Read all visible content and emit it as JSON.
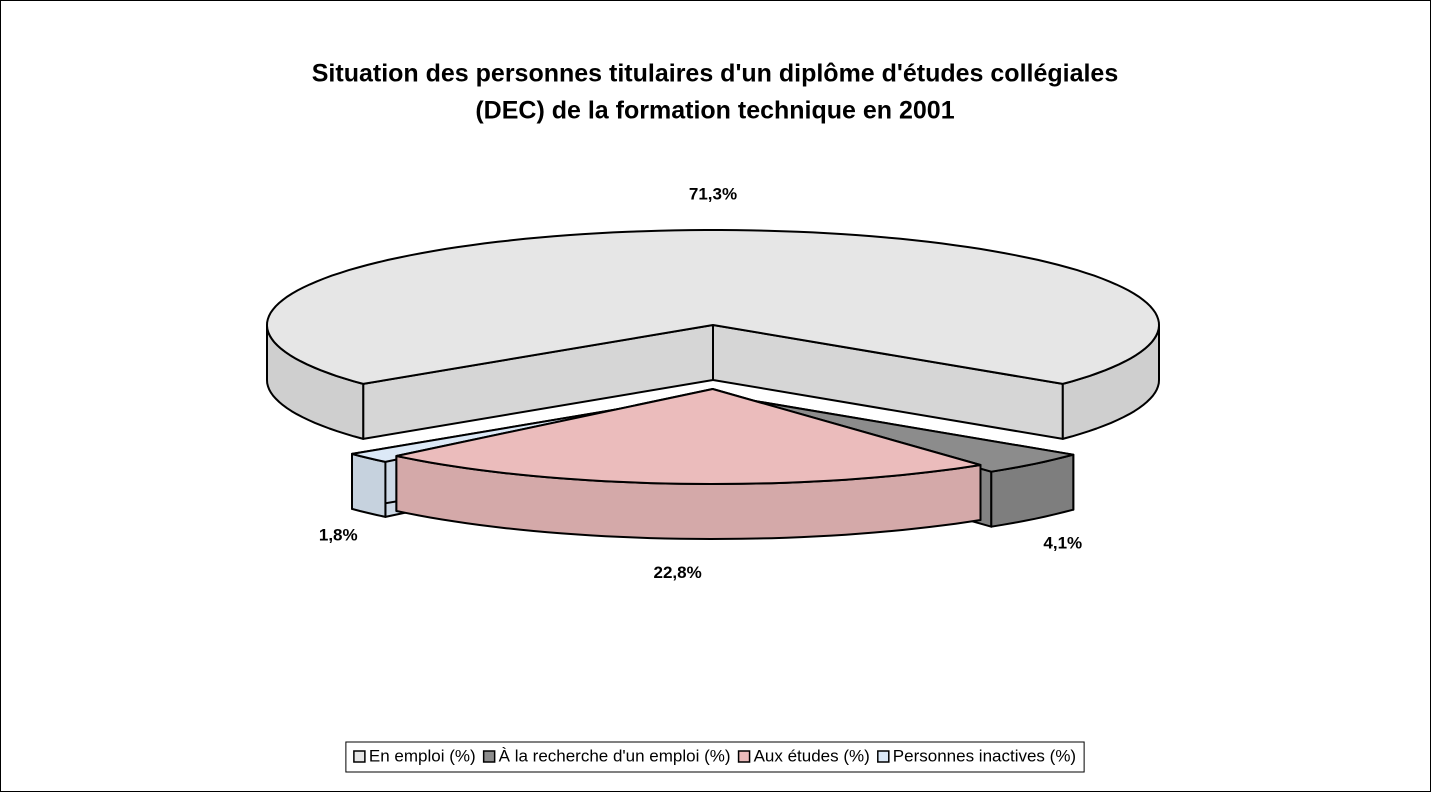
{
  "chart_data": {
    "type": "pie",
    "title": [
      "Situation des personnes titulaires d'un diplôme d'études collégiales",
      "(DEC) de la formation technique en 2001"
    ],
    "categories": [
      "En emploi (%)",
      "À la recherche d'un emploi (%)",
      "Aux études (%)",
      "Personnes inactives (%)"
    ],
    "values": [
      71.3,
      4.1,
      22.8,
      1.8
    ],
    "value_labels": [
      "71,3%",
      "4,1%",
      "22,8%",
      "1,8%"
    ],
    "colors": [
      "#e6e6e6",
      "#8c8c8c",
      "#ebbcbc",
      "#dce9f7"
    ],
    "legend": "bottom"
  }
}
